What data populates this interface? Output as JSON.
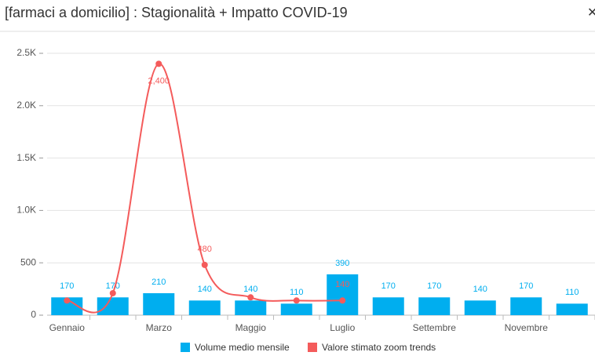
{
  "chart_data": {
    "type": "bar+line",
    "title": "[farmaci a domicilio] : Stagionalità + Impatto COVID-19",
    "categories": [
      "Gennaio",
      null,
      "Marzo",
      null,
      "Maggio",
      null,
      "Luglio",
      null,
      "Settembre",
      null,
      "Novembre",
      null
    ],
    "series": [
      {
        "name": "Volume medio mensile",
        "type": "bar",
        "color": "#00aeef",
        "values": [
          170,
          170,
          210,
          140,
          140,
          110,
          390,
          170,
          170,
          140,
          170,
          110
        ]
      },
      {
        "name": "Valore stimato zoom trends",
        "type": "line",
        "color": "#f45b5b",
        "values": [
          140,
          210,
          2400,
          480,
          170,
          140,
          140,
          null,
          null,
          null,
          null,
          null
        ],
        "value_labels": [
          null,
          null,
          "2,400",
          "480",
          null,
          null,
          "140",
          null,
          null,
          null,
          null,
          null
        ]
      }
    ],
    "ylim": [
      0,
      2500
    ],
    "yticks": [
      0,
      500,
      {
        "value": 1000,
        "label": "1.0K"
      },
      {
        "value": 1500,
        "label": "1.5K"
      },
      {
        "value": 2000,
        "label": "2.0K"
      },
      {
        "value": 2500,
        "label": "2.5K"
      }
    ],
    "grid": true
  }
}
